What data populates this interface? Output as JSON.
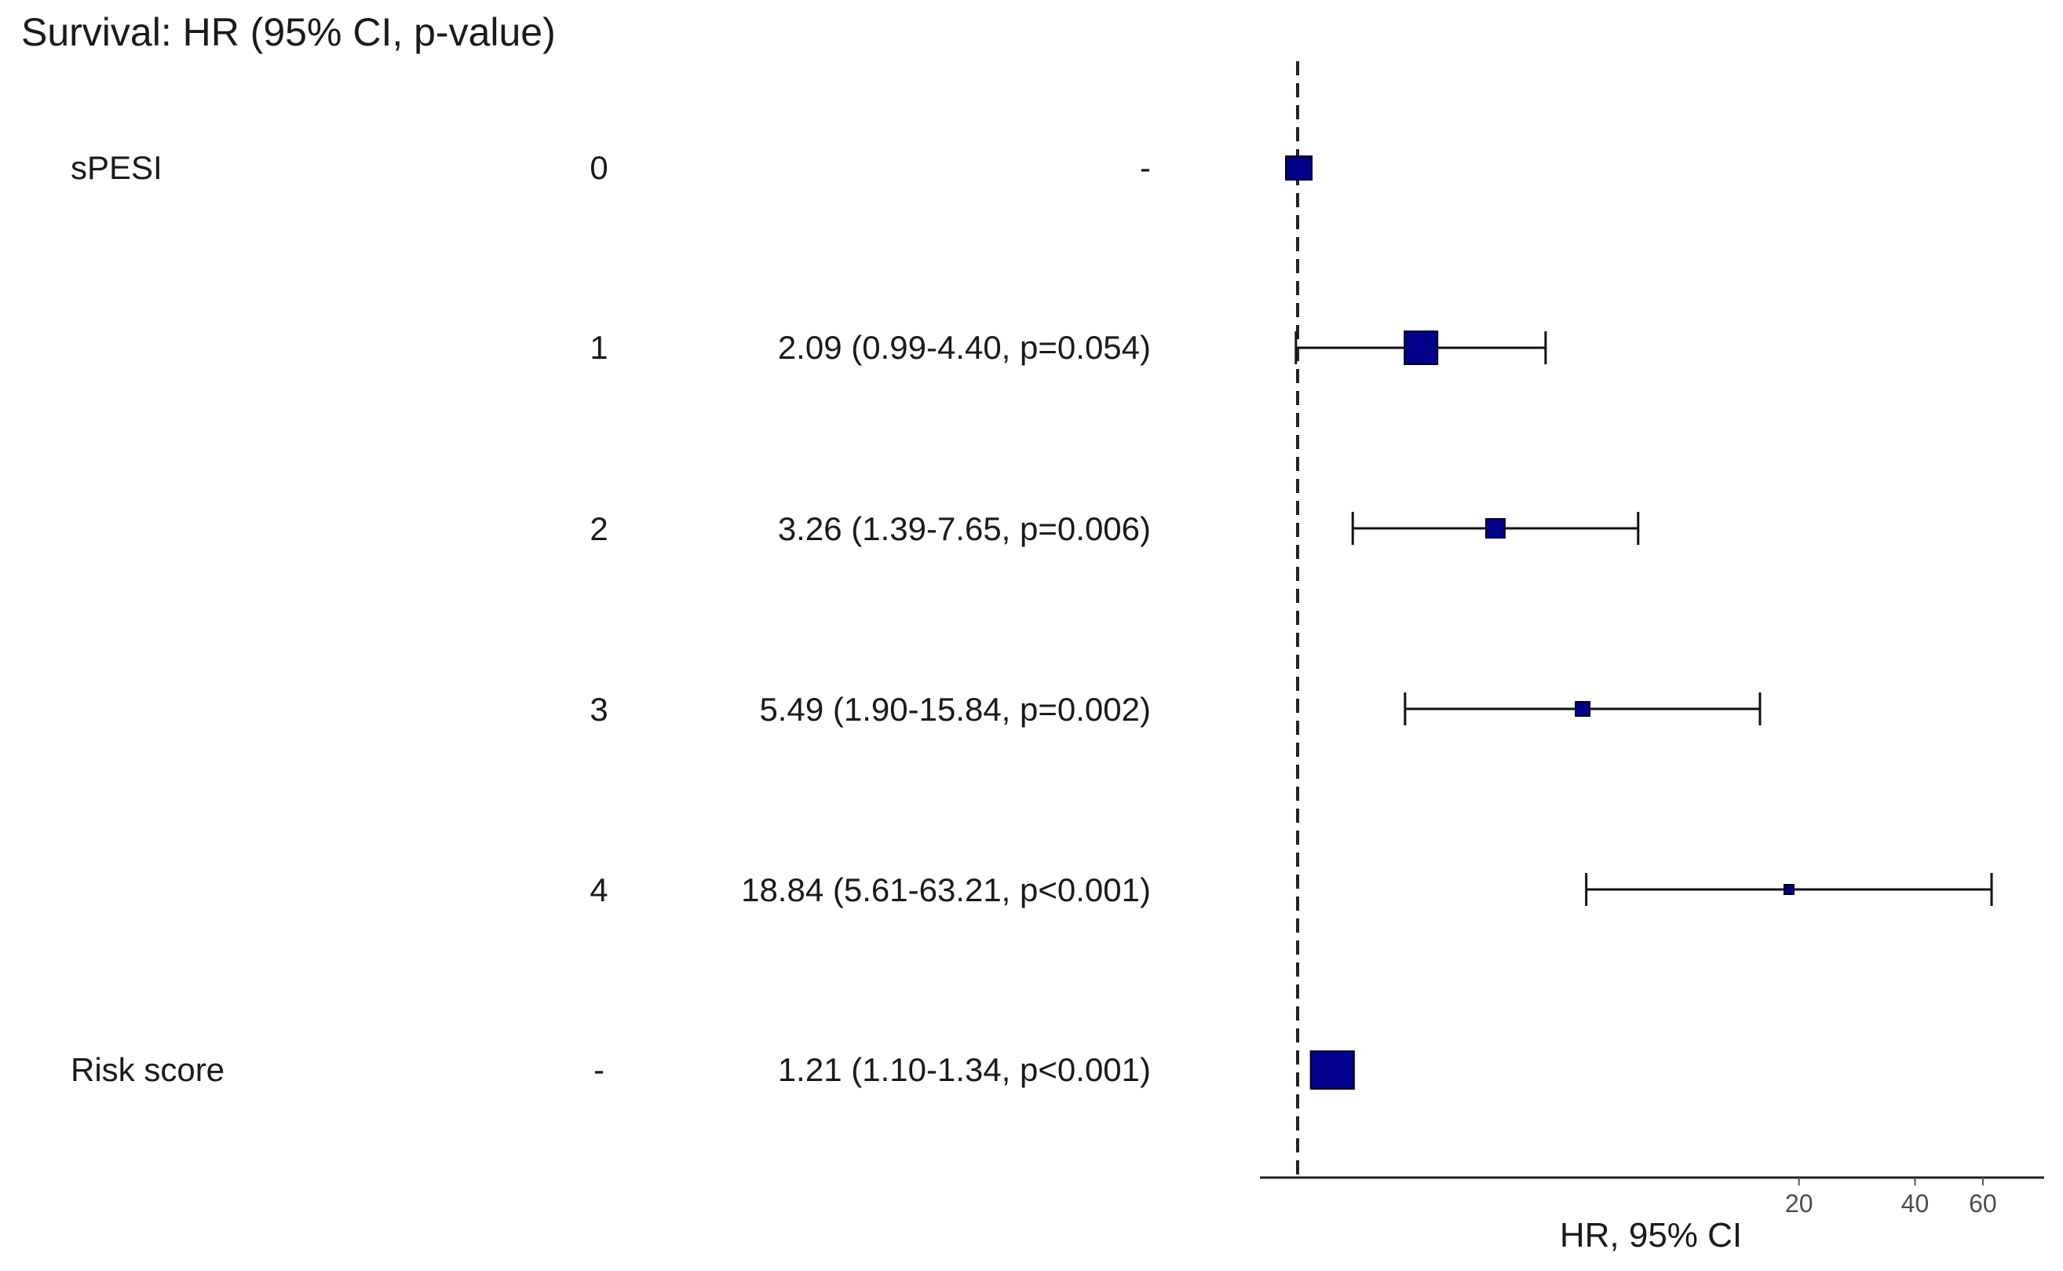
{
  "chart_data": {
    "type": "forest",
    "title": "Survival: HR (95% CI, p-value)",
    "xlabel": "HR, 95% CI",
    "x_scale": "log",
    "x_ticks": [
      "20",
      "40",
      "60"
    ],
    "reference_line": 1,
    "marker_color": "#00008b",
    "rows": [
      {
        "variable": "sPESI",
        "level": "0",
        "text": "-",
        "hr": 1.0,
        "lo": null,
        "hi": null
      },
      {
        "variable": "",
        "level": "1",
        "text": "2.09 (0.99-4.40, p=0.054)",
        "hr": 2.09,
        "lo": 0.99,
        "hi": 4.4
      },
      {
        "variable": "",
        "level": "2",
        "text": "3.26 (1.39-7.65, p=0.006)",
        "hr": 3.26,
        "lo": 1.39,
        "hi": 7.65
      },
      {
        "variable": "",
        "level": "3",
        "text": "5.49 (1.90-15.84, p=0.002)",
        "hr": 5.49,
        "lo": 1.9,
        "hi": 15.84
      },
      {
        "variable": "",
        "level": "4",
        "text": "18.84 (5.61-63.21, p<0.001)",
        "hr": 18.84,
        "lo": 5.61,
        "hi": 63.21
      },
      {
        "variable": "Risk score",
        "level": "-",
        "text": "1.21 (1.10-1.34, p<0.001)",
        "hr": 1.21,
        "lo": 1.1,
        "hi": 1.34
      }
    ]
  }
}
